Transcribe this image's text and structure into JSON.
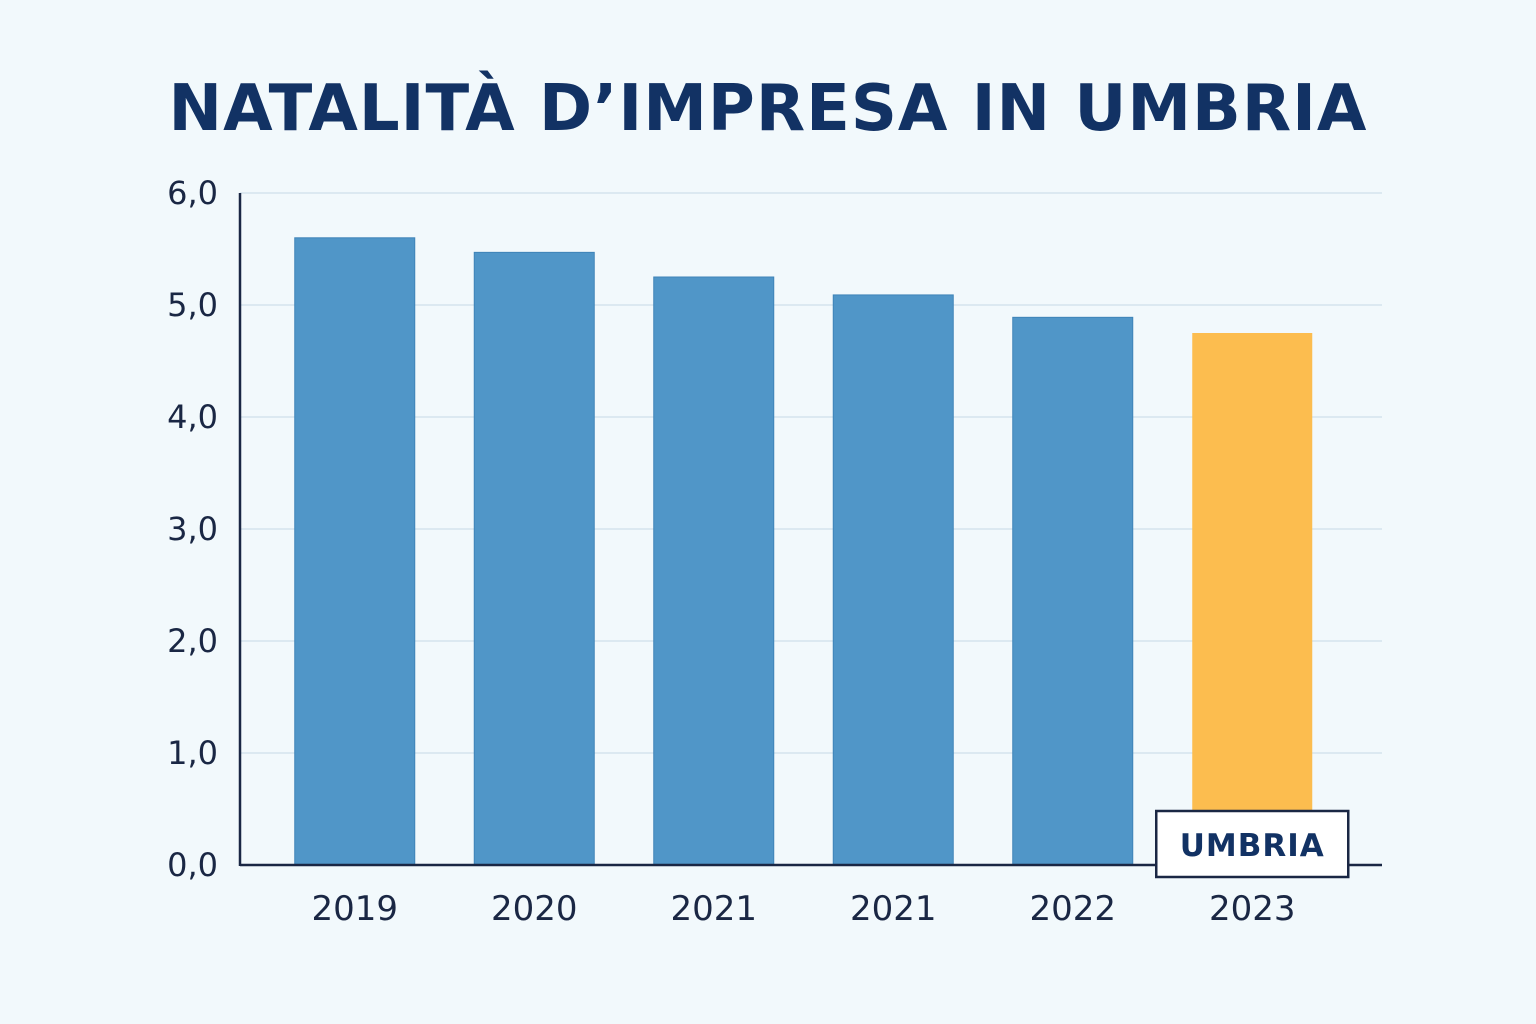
{
  "chart_data": {
    "type": "bar",
    "title": "NATALITÀ D’IMPRESA IN UMBRIA",
    "xlabel": "",
    "ylabel": "",
    "categories": [
      "2019",
      "2020",
      "2021",
      "2021",
      "2022",
      "2023"
    ],
    "values": [
      5.6,
      5.47,
      5.25,
      5.09,
      4.89,
      4.75
    ],
    "ylim": [
      0,
      6
    ],
    "y_ticks": [
      "0,0",
      "1,0",
      "2,0",
      "3,0",
      "4,0",
      "5,0",
      "6,0"
    ],
    "grid": true,
    "colors": {
      "bar": "#5096c8",
      "highlight_bar": "#fcbd4f",
      "title": "#123264",
      "axis": "#1a2744",
      "grid": "#cfe0ea"
    },
    "highlight_index": 5,
    "annotations": [
      {
        "text": "UMBRIA",
        "category_index": 5
      }
    ]
  }
}
